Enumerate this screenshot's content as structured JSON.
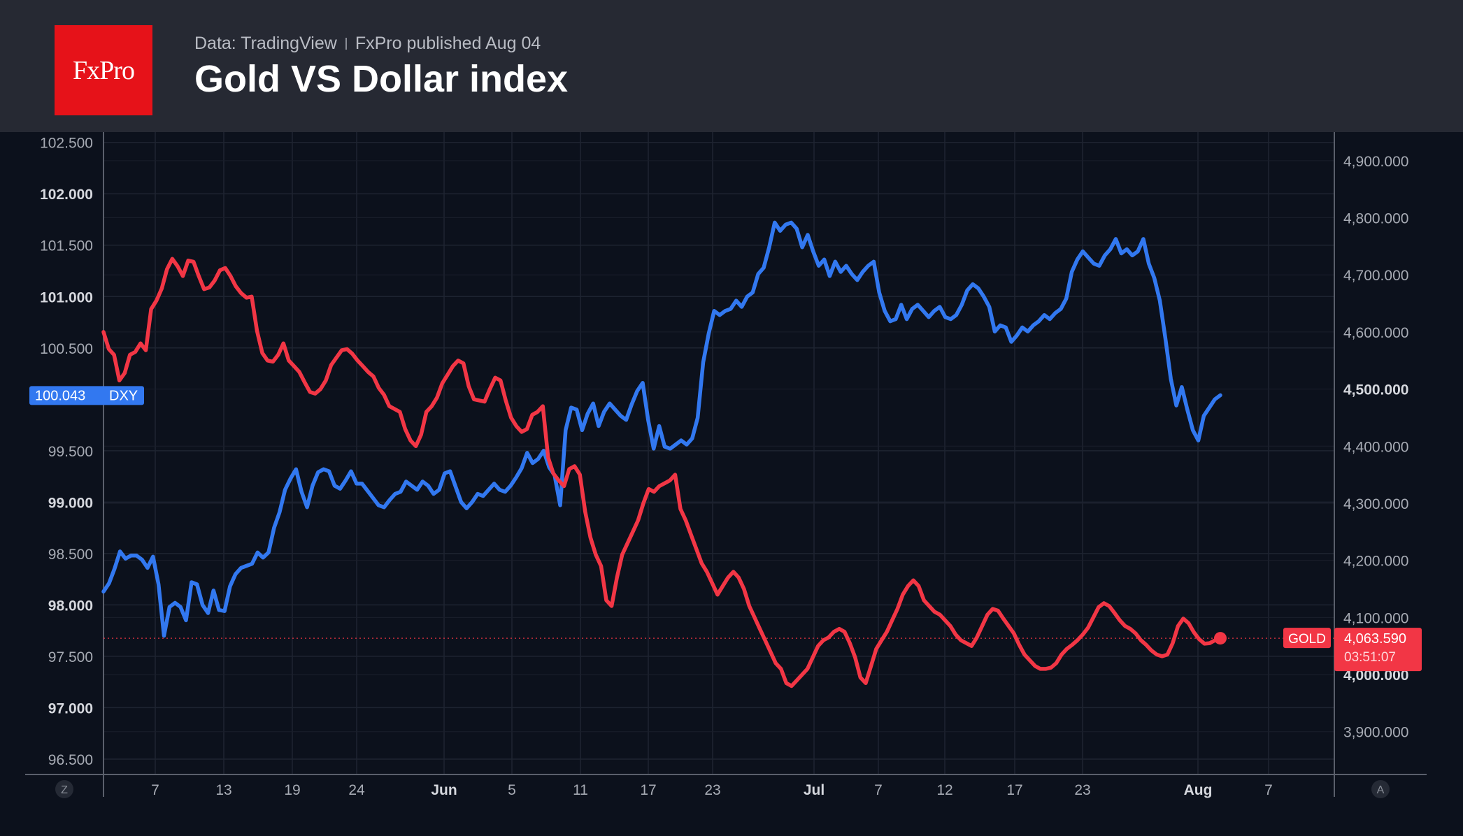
{
  "header": {
    "logo_text": "FxPro",
    "source_text": "Data: TradingView",
    "published_text": "FxPro published Aug 04",
    "title": "Gold VS Dollar index"
  },
  "colors": {
    "dxy": "#3278f0",
    "gold": "#f23645",
    "background": "#0c111c",
    "header_background": "#262933",
    "logo_background": "#e61219"
  },
  "chart_data": {
    "type": "line",
    "title": "Gold VS Dollar index",
    "grid": true,
    "x_ticks": [
      {
        "label": "7",
        "bold": false
      },
      {
        "label": "13",
        "bold": false
      },
      {
        "label": "19",
        "bold": false
      },
      {
        "label": "24",
        "bold": false
      },
      {
        "label": "Jun",
        "bold": true
      },
      {
        "label": "5",
        "bold": false
      },
      {
        "label": "11",
        "bold": false
      },
      {
        "label": "17",
        "bold": false
      },
      {
        "label": "23",
        "bold": false
      },
      {
        "label": "Jul",
        "bold": true
      },
      {
        "label": "7",
        "bold": false
      },
      {
        "label": "12",
        "bold": false
      },
      {
        "label": "17",
        "bold": false
      },
      {
        "label": "23",
        "bold": false
      },
      {
        "label": "Aug",
        "bold": true
      },
      {
        "label": "7",
        "bold": false
      }
    ],
    "left_axis": {
      "series": "DXY",
      "ylim": [
        96.35,
        102.6
      ],
      "ticks": [
        {
          "label": "102.500",
          "value": 102.5,
          "bold": false
        },
        {
          "label": "102.000",
          "value": 102.0,
          "bold": true
        },
        {
          "label": "101.500",
          "value": 101.5,
          "bold": false
        },
        {
          "label": "101.000",
          "value": 101.0,
          "bold": true
        },
        {
          "label": "100.500",
          "value": 100.5,
          "bold": false
        },
        {
          "label": "99.500",
          "value": 99.5,
          "bold": false
        },
        {
          "label": "99.000",
          "value": 99.0,
          "bold": true
        },
        {
          "label": "98.500",
          "value": 98.5,
          "bold": false
        },
        {
          "label": "98.000",
          "value": 98.0,
          "bold": true
        },
        {
          "label": "97.500",
          "value": 97.5,
          "bold": false
        },
        {
          "label": "97.000",
          "value": 97.0,
          "bold": true
        },
        {
          "label": "96.500",
          "value": 96.5,
          "bold": false
        }
      ]
    },
    "right_axis": {
      "series": "GOLD",
      "ylim": [
        3825,
        4950
      ],
      "ticks": [
        {
          "label": "4,900.000",
          "value": 4900,
          "bold": false
        },
        {
          "label": "4,800.000",
          "value": 4800,
          "bold": false
        },
        {
          "label": "4,700.000",
          "value": 4700,
          "bold": false
        },
        {
          "label": "4,600.000",
          "value": 4600,
          "bold": false
        },
        {
          "label": "4,500.000",
          "value": 4500,
          "bold": true
        },
        {
          "label": "4,400.000",
          "value": 4400,
          "bold": false
        },
        {
          "label": "4,300.000",
          "value": 4300,
          "bold": false
        },
        {
          "label": "4,200.000",
          "value": 4200,
          "bold": false
        },
        {
          "label": "4,100.000",
          "value": 4100,
          "bold": false
        },
        {
          "label": "4,000.000",
          "value": 4000,
          "bold": true
        },
        {
          "label": "3,900.000",
          "value": 3900,
          "bold": false
        }
      ]
    },
    "series": [
      {
        "name": "DXY",
        "axis": "left",
        "color": "#3278f0",
        "last_label": "100.043",
        "values": [
          98.13,
          98.21,
          98.35,
          98.52,
          98.45,
          98.48,
          98.48,
          98.44,
          98.36,
          98.47,
          98.2,
          97.7,
          97.98,
          98.02,
          97.98,
          97.85,
          98.22,
          98.2,
          98.0,
          97.92,
          98.14,
          97.95,
          97.94,
          98.18,
          98.3,
          98.36,
          98.38,
          98.4,
          98.51,
          98.46,
          98.51,
          98.75,
          98.9,
          99.12,
          99.23,
          99.32,
          99.1,
          98.95,
          99.16,
          99.29,
          99.32,
          99.3,
          99.16,
          99.13,
          99.21,
          99.3,
          99.18,
          99.18,
          99.11,
          99.04,
          98.97,
          98.95,
          99.02,
          99.08,
          99.1,
          99.2,
          99.16,
          99.12,
          99.2,
          99.16,
          99.08,
          99.12,
          99.28,
          99.3,
          99.15,
          99.0,
          98.94,
          99.0,
          99.08,
          99.06,
          99.12,
          99.18,
          99.12,
          99.1,
          99.16,
          99.24,
          99.33,
          99.48,
          99.38,
          99.42,
          99.5,
          99.34,
          99.26,
          98.97,
          99.7,
          99.92,
          99.9,
          99.7,
          99.86,
          99.96,
          99.74,
          99.88,
          99.96,
          99.9,
          99.84,
          99.8,
          99.95,
          100.08,
          100.16,
          99.8,
          99.52,
          99.74,
          99.54,
          99.52,
          99.56,
          99.6,
          99.56,
          99.62,
          99.82,
          100.36,
          100.64,
          100.86,
          100.82,
          100.86,
          100.88,
          100.96,
          100.9,
          101.0,
          101.04,
          101.22,
          101.28,
          101.48,
          101.72,
          101.64,
          101.7,
          101.72,
          101.66,
          101.48,
          101.6,
          101.44,
          101.3,
          101.36,
          101.2,
          101.34,
          101.24,
          101.3,
          101.22,
          101.16,
          101.24,
          101.3,
          101.34,
          101.04,
          100.86,
          100.76,
          100.78,
          100.92,
          100.78,
          100.88,
          100.92,
          100.86,
          100.8,
          100.86,
          100.9,
          100.8,
          100.78,
          100.82,
          100.92,
          101.06,
          101.12,
          101.08,
          101.0,
          100.9,
          100.66,
          100.72,
          100.7,
          100.56,
          100.62,
          100.7,
          100.66,
          100.72,
          100.76,
          100.82,
          100.78,
          100.84,
          100.88,
          100.98,
          101.24,
          101.36,
          101.44,
          101.38,
          101.32,
          101.3,
          101.4,
          101.46,
          101.56,
          101.42,
          101.46,
          101.4,
          101.44,
          101.56,
          101.32,
          101.18,
          100.96,
          100.6,
          100.2,
          99.94,
          100.12,
          99.9,
          99.7,
          99.6,
          99.84,
          99.92,
          100.0,
          100.04
        ]
      },
      {
        "name": "GOLD",
        "axis": "right",
        "color": "#f23645",
        "last_label": "4,063.590",
        "countdown": "03:51:07",
        "values": [
          4600,
          4570,
          4560,
          4515,
          4528,
          4560,
          4565,
          4580,
          4568,
          4640,
          4655,
          4676,
          4710,
          4728,
          4715,
          4698,
          4725,
          4723,
          4698,
          4675,
          4678,
          4690,
          4708,
          4712,
          4698,
          4680,
          4668,
          4660,
          4662,
          4602,
          4563,
          4550,
          4548,
          4560,
          4580,
          4550,
          4540,
          4530,
          4512,
          4495,
          4492,
          4500,
          4515,
          4542,
          4555,
          4568,
          4570,
          4562,
          4550,
          4540,
          4530,
          4522,
          4502,
          4490,
          4470,
          4465,
          4460,
          4430,
          4410,
          4400,
          4420,
          4460,
          4470,
          4485,
          4510,
          4525,
          4540,
          4550,
          4545,
          4505,
          4482,
          4480,
          4478,
          4500,
          4520,
          4515,
          4480,
          4450,
          4435,
          4425,
          4430,
          4455,
          4460,
          4470,
          4380,
          4352,
          4340,
          4330,
          4360,
          4365,
          4350,
          4285,
          4240,
          4210,
          4190,
          4130,
          4120,
          4170,
          4210,
          4230,
          4250,
          4270,
          4300,
          4325,
          4320,
          4330,
          4335,
          4340,
          4350,
          4290,
          4270,
          4245,
          4220,
          4195,
          4180,
          4160,
          4140,
          4155,
          4170,
          4180,
          4170,
          4150,
          4120,
          4100,
          4080,
          4060,
          4040,
          4020,
          4010,
          3985,
          3980,
          3990,
          4000,
          4010,
          4030,
          4050,
          4060,
          4065,
          4075,
          4080,
          4075,
          4055,
          4030,
          3995,
          3985,
          4015,
          4045,
          4060,
          4075,
          4095,
          4115,
          4140,
          4155,
          4165,
          4155,
          4130,
          4120,
          4110,
          4105,
          4095,
          4085,
          4070,
          4060,
          4055,
          4050,
          4065,
          4085,
          4105,
          4115,
          4112,
          4098,
          4085,
          4072,
          4052,
          4035,
          4025,
          4015,
          4010,
          4010,
          4012,
          4020,
          4035,
          4045,
          4052,
          4060,
          4070,
          4082,
          4100,
          4118,
          4125,
          4120,
          4108,
          4095,
          4085,
          4080,
          4072,
          4060,
          4052,
          4042,
          4035,
          4032,
          4035,
          4055,
          4085,
          4098,
          4090,
          4074,
          4062,
          4054,
          4055,
          4060,
          4063.59
        ]
      }
    ],
    "axis_buttons": [
      "Z",
      "A"
    ]
  }
}
